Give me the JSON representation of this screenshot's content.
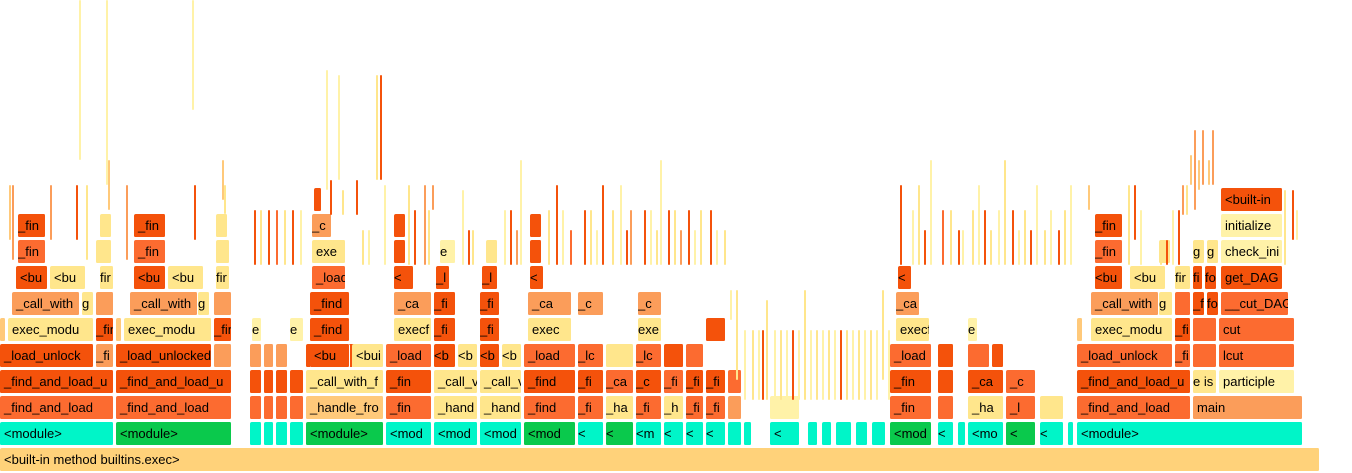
{
  "palette": {
    "red": "#f4520b",
    "orange": "#fc6b30",
    "light_orange": "#fb9d5a",
    "peach": "#ffc97a",
    "yellow": "#ffe68c",
    "pale_yellow": "#fff2a8",
    "cyan": "#00f5c8",
    "green": "#0ac94c",
    "root": "#ffd27a"
  },
  "root": {
    "label": "<built-in method builtins.exec>"
  },
  "main_labels": {
    "module": "<module>",
    "find_and_load": "_find_and_load",
    "find_and_load_u": "_find_and_load_u",
    "find_and_load_unlocked": "_find_and_load_unlocked",
    "load_unlock": "_load_unlock",
    "load_unlocked": "_load_unlocked",
    "exec_modu": "exec_modu",
    "call_with": "_call_with",
    "call_with_f": "_call_with_f",
    "handle_fro": "_handle_fro",
    "hand": "_hand",
    "bu": "<bu",
    "b": "<b",
    "bui": "<bui",
    "buil": "<buil",
    "fin": "_fin",
    "find": "_find",
    "fi": "_fi",
    "f": "fi",
    "g": "g",
    "exec": "exec",
    "exe": "exe",
    "execf": "execf",
    "load": "_load",
    "loa": "_loa",
    "lc": "_lc",
    "ca": "_ca",
    "c": "_c",
    "call_v": "_call_v",
    "mod": "<mod",
    "m": "<m",
    "mo": "<mo",
    "fo": "fo",
    "e": "e",
    "fr": "_fr",
    "h": "_h",
    "l": "_l",
    "ha": "_ha",
    "hal": "_ha",
    "fir": "fir",
    "d": "_d",
    "x": "<"
  },
  "right_stack": {
    "main": "main",
    "participle": "participle",
    "lcut": "lcut",
    "cut": "cut",
    "cut_dag": "__cut_DAG",
    "get_dag": "get_DAG",
    "check_ini": "check_ini",
    "initialize": "initialize",
    "built_in": "<built-in",
    "e_is": "e is"
  }
}
